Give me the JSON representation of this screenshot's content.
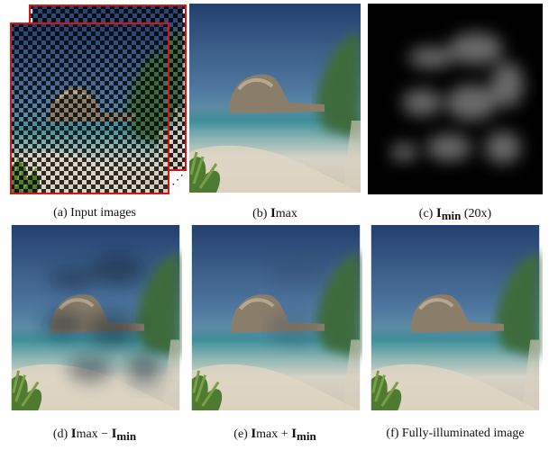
{
  "panels": [
    {
      "caption": [
        "(a) Input images"
      ]
    },
    {
      "caption": [
        "(b)",
        "I",
        "max"
      ]
    },
    {
      "caption": [
        "(c)",
        "I",
        "min",
        "(20x)"
      ]
    },
    {
      "caption": [
        "(d)",
        "I",
        "max",
        "−",
        "I",
        "min"
      ]
    },
    {
      "caption": [
        "(e)",
        "I",
        "max",
        "+",
        "I",
        "min"
      ]
    },
    {
      "caption": [
        "(f) Fully-illuminated image"
      ]
    }
  ]
}
